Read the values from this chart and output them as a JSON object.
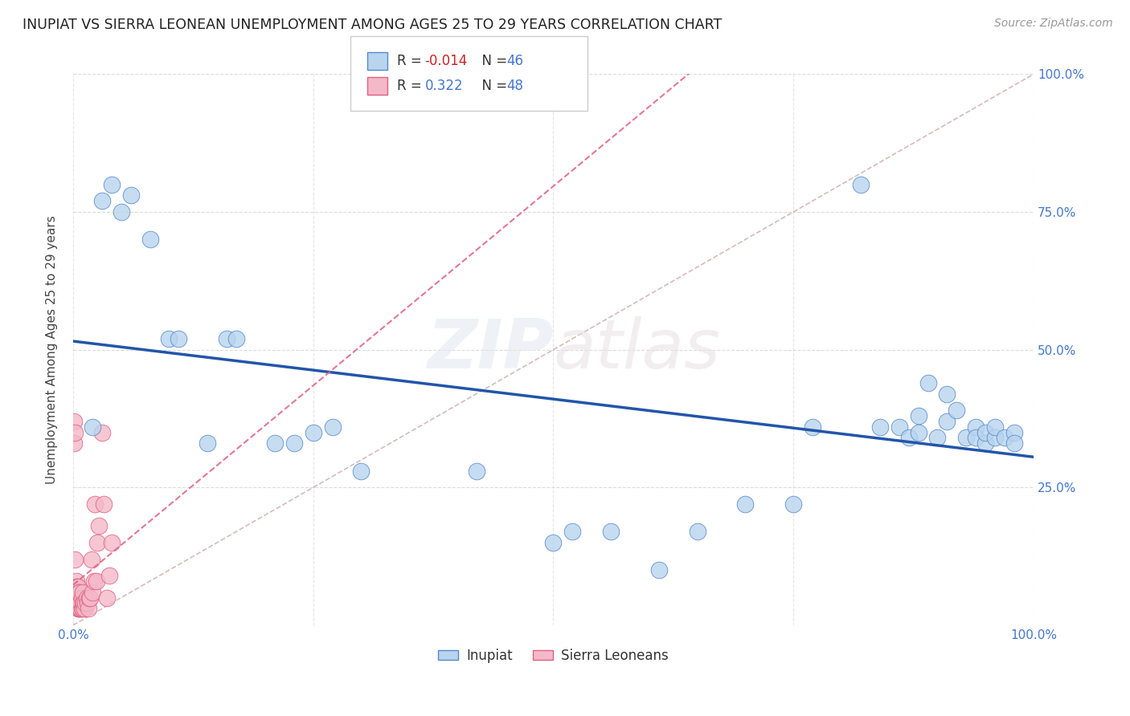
{
  "title": "INUPIAT VS SIERRA LEONEAN UNEMPLOYMENT AMONG AGES 25 TO 29 YEARS CORRELATION CHART",
  "source": "Source: ZipAtlas.com",
  "ylabel": "Unemployment Among Ages 25 to 29 years",
  "xlim": [
    0,
    1.0
  ],
  "ylim": [
    0,
    1.0
  ],
  "inupiat_R": "-0.014",
  "inupiat_N": "46",
  "sierra_R": "0.322",
  "sierra_N": "48",
  "inupiat_color": "#b8d4ee",
  "sierra_color": "#f4b8c8",
  "inupiat_edge_color": "#5588cc",
  "sierra_edge_color": "#e06080",
  "inupiat_line_color": "#2255aa",
  "sierra_line_color": "#e06080",
  "diagonal_color": "#ccaaaa",
  "grid_color": "#cccccc",
  "watermark": "ZIPatlas",
  "inupiat_x": [
    0.02,
    0.03,
    0.04,
    0.05,
    0.06,
    0.08,
    0.1,
    0.11,
    0.14,
    0.16,
    0.17,
    0.21,
    0.23,
    0.25,
    0.27,
    0.3,
    0.42,
    0.5,
    0.52,
    0.56,
    0.61,
    0.65,
    0.7,
    0.75,
    0.77,
    0.82,
    0.84,
    0.86,
    0.87,
    0.88,
    0.88,
    0.89,
    0.9,
    0.91,
    0.91,
    0.92,
    0.93,
    0.94,
    0.94,
    0.95,
    0.95,
    0.96,
    0.96,
    0.97,
    0.98,
    0.98
  ],
  "inupiat_y": [
    0.36,
    0.77,
    0.8,
    0.75,
    0.78,
    0.7,
    0.52,
    0.52,
    0.33,
    0.52,
    0.52,
    0.33,
    0.33,
    0.35,
    0.36,
    0.28,
    0.28,
    0.15,
    0.17,
    0.17,
    0.1,
    0.17,
    0.22,
    0.22,
    0.36,
    0.8,
    0.36,
    0.36,
    0.34,
    0.35,
    0.38,
    0.44,
    0.34,
    0.37,
    0.42,
    0.39,
    0.34,
    0.36,
    0.34,
    0.33,
    0.35,
    0.34,
    0.36,
    0.34,
    0.35,
    0.33
  ],
  "sierra_x": [
    0.001,
    0.001,
    0.002,
    0.002,
    0.003,
    0.003,
    0.003,
    0.004,
    0.004,
    0.004,
    0.005,
    0.005,
    0.005,
    0.005,
    0.006,
    0.006,
    0.006,
    0.007,
    0.007,
    0.007,
    0.007,
    0.008,
    0.008,
    0.009,
    0.009,
    0.01,
    0.01,
    0.01,
    0.011,
    0.012,
    0.013,
    0.014,
    0.015,
    0.016,
    0.017,
    0.018,
    0.019,
    0.02,
    0.022,
    0.023,
    0.024,
    0.025,
    0.027,
    0.03,
    0.032,
    0.035,
    0.038,
    0.04
  ],
  "sierra_y": [
    0.33,
    0.37,
    0.35,
    0.12,
    0.08,
    0.07,
    0.05,
    0.05,
    0.07,
    0.04,
    0.03,
    0.04,
    0.05,
    0.07,
    0.03,
    0.04,
    0.06,
    0.03,
    0.04,
    0.05,
    0.06,
    0.03,
    0.04,
    0.03,
    0.05,
    0.03,
    0.04,
    0.06,
    0.04,
    0.03,
    0.04,
    0.05,
    0.04,
    0.03,
    0.05,
    0.05,
    0.12,
    0.06,
    0.08,
    0.22,
    0.08,
    0.15,
    0.18,
    0.35,
    0.22,
    0.05,
    0.09,
    0.15
  ]
}
